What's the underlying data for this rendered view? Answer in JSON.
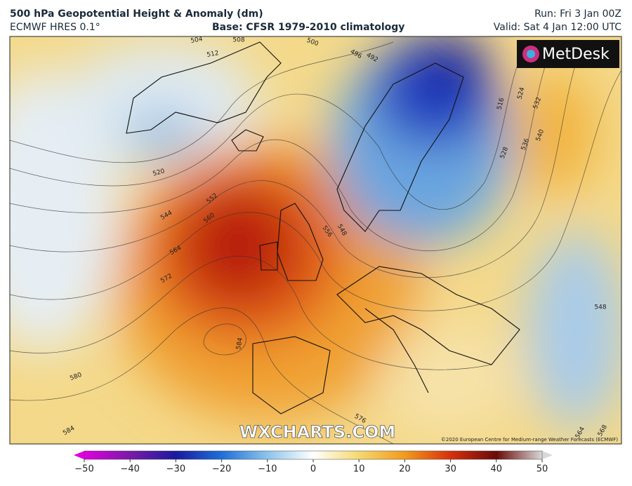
{
  "header": {
    "title": "500 hPa Geopotential Height & Anomaly (dm)",
    "model": "ECMWF HRES 0.1°",
    "base": "Base: CFSR 1979-2010 climatology",
    "run": "Run: Fri 3 Jan 00Z",
    "valid": "Valid: Sat 4 Jan 12:00 UTC"
  },
  "logo": "MetDesk",
  "watermark": "WXCHARTS.COM",
  "copyright": "©2020 European Centre for Medium-range Weather Forecasts (ECMWF)",
  "contour_labels": [
    "504",
    "508",
    "512",
    "500",
    "496",
    "492",
    "516",
    "524",
    "532",
    "540",
    "536",
    "528",
    "520",
    "544",
    "552",
    "560",
    "564",
    "572",
    "556",
    "548",
    "584",
    "580",
    "576",
    "584",
    "548",
    "564",
    "568"
  ],
  "colorbar": {
    "ticks": [
      {
        "value": -50,
        "label": "−50"
      },
      {
        "value": -40,
        "label": "−40"
      },
      {
        "value": -30,
        "label": "−30"
      },
      {
        "value": -20,
        "label": "−20"
      },
      {
        "value": -10,
        "label": "−10"
      },
      0,
      10,
      20,
      30,
      40,
      50
    ]
  }
}
